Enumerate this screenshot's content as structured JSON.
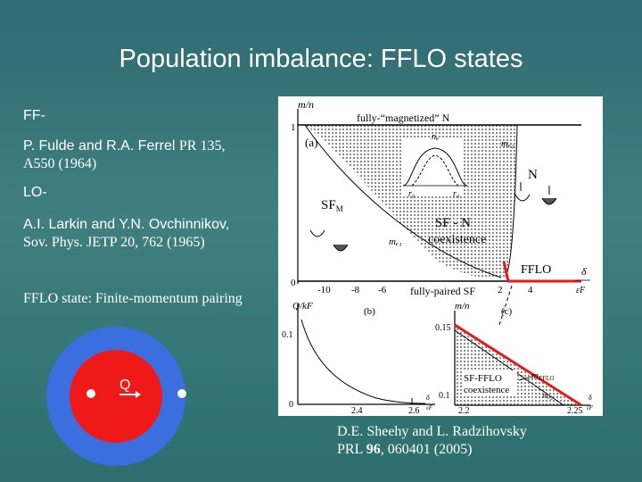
{
  "slide": {
    "title": "Population imbalance: FFLO states",
    "ff_label": "FF-",
    "ff_authors": "P. Fulde and R.A. Ferrel",
    "ff_journal_1": "PR 135,",
    "ff_journal_2": "A550 (1964)",
    "lo_label": "LO-",
    "lo_authors": "A.I. Larkin and Y.N. Ovchinnikov,",
    "lo_journal": "Sov. Phys. JETP 20, 762 (1965)",
    "fflo_definition": "FFLO state: Finite-momentum pairing",
    "cite_authors": "D.E. Sheehy and L. Radzihovsky",
    "cite_journal_pre": "PRL ",
    "cite_volume": "96",
    "cite_journal_post": ", 060401 (2005)"
  },
  "momentum_diagram": {
    "label": "Q",
    "outer_color": "#3b6fe0",
    "inner_color": "#ee1a1a"
  },
  "figure": {
    "panel_a": {
      "ylabel": "m/n",
      "label": "(a)",
      "top_region": "fully-“magnetized” N",
      "mc2": "mₑ₂",
      "mc1": "mₑ₁",
      "sfm": "SF",
      "sfm_sub": "M",
      "coexist_1": "SF - N",
      "coexist_2": "coexistence",
      "n_label": "N",
      "fflo": "FFLO",
      "bottom_region": "fully-paired SF",
      "xlabel": "δ",
      "xlabel_den": "εF",
      "y_ticks": [
        "1",
        "0"
      ],
      "x_ticks": [
        "-10",
        "-8",
        "-6",
        "2",
        "4"
      ],
      "inset_top": "nₐ",
      "inset_r0_1": "r₀",
      "inset_r0_2": "r₀"
    },
    "panel_b": {
      "ylabel": "Q/kF",
      "label": "(b)",
      "y_ticks": [
        "0.1",
        "0"
      ],
      "x_ticks": [
        "2.4",
        "2.6"
      ],
      "xlabel": "δ",
      "xlabel_den": "εF"
    },
    "panel_c": {
      "ylabel": "m/n",
      "label": "(c)",
      "y_ticks": [
        "0.15",
        "0.1"
      ],
      "x_ticks": [
        "2.2",
        "2.25"
      ],
      "region_1": "SF-FFLO",
      "region_2": "coexistence",
      "mfflo": "m",
      "mfflo_sub": "FFLO",
      "mc2": "mₑ₂",
      "xlabel": "δ",
      "xlabel_den": "εF"
    }
  }
}
